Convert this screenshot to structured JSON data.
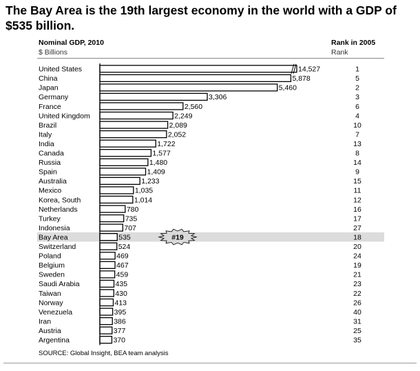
{
  "title": "The Bay Area is the 19th largest economy in the world with a GDP of $535 billion.",
  "header": {
    "left_title": "Nominal GDP, 2010",
    "left_unit": "$ Billions",
    "right_title": "Rank in 2005",
    "right_unit": "Rank"
  },
  "callout": "#19",
  "source": "SOURCE: Global Insight, BEA  team analysis",
  "colors": {
    "bar_fill": "#ffffff",
    "bar_stroke": "#000000",
    "highlight_row": "#dcdcdc"
  },
  "chart_data": {
    "type": "bar",
    "orientation": "horizontal",
    "categories": [
      "United States",
      "China",
      "Japan",
      "Germany",
      "France",
      "United Kingdom",
      "Brazil",
      "Italy",
      "India",
      "Canada",
      "Russia",
      "Spain",
      "Australia",
      "Mexico",
      "Korea, South",
      "Netherlands",
      "Turkey",
      "Indonesia",
      "Bay Area",
      "Switzerland",
      "Poland",
      "Belgium",
      "Sweden",
      "Saudi Arabia",
      "Taiwan",
      "Norway",
      "Venezuela",
      "Iran",
      "Austria",
      "Argentina"
    ],
    "values": [
      14527,
      5878,
      5460,
      3306,
      2560,
      2249,
      2089,
      2052,
      1722,
      1577,
      1480,
      1409,
      1233,
      1035,
      1014,
      780,
      735,
      707,
      535,
      524,
      469,
      467,
      459,
      435,
      430,
      413,
      395,
      386,
      377,
      370
    ],
    "value_labels": [
      "14,527",
      "5,878",
      "5,460",
      "3,306",
      "2,560",
      "2,249",
      "2,089",
      "2,052",
      "1,722",
      "1,577",
      "1,480",
      "1,409",
      "1,233",
      "1,035",
      "1,014",
      "780",
      "735",
      "707",
      "535",
      "524",
      "469",
      "467",
      "459",
      "435",
      "430",
      "413",
      "395",
      "386",
      "377",
      "370"
    ],
    "rank_2005": [
      "1",
      "5",
      "2",
      "3",
      "6",
      "4",
      "10",
      "7",
      "13",
      "8",
      "14",
      "9",
      "15",
      "11",
      "12",
      "16",
      "17",
      "27",
      "18",
      "20",
      "24",
      "19",
      "21",
      "23",
      "22",
      "26",
      "40",
      "31",
      "25",
      "35"
    ],
    "highlight": "Bay Area",
    "axis_break": true,
    "xlim": [
      0,
      6250
    ]
  }
}
